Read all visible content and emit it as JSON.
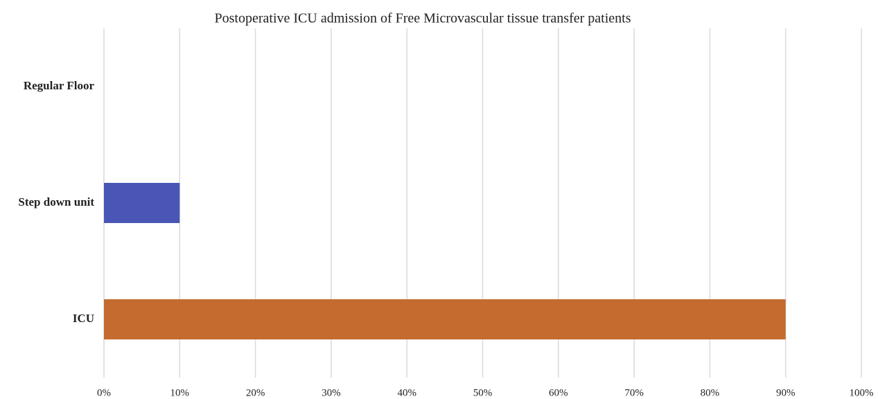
{
  "chart_data": {
    "type": "bar",
    "orientation": "horizontal",
    "title": "Postoperative ICU admission of Free Microvascular tissue transfer patients",
    "categories": [
      "Regular Floor",
      "Step down unit",
      "ICU"
    ],
    "values": [
      0,
      10,
      90
    ],
    "colors": [
      null,
      "#4a56b5",
      "#c46b30"
    ],
    "xlim": [
      0,
      100
    ],
    "xticks": [
      {
        "value": 0,
        "label": "0%"
      },
      {
        "value": 10,
        "label": "10%"
      },
      {
        "value": 20,
        "label": "20%"
      },
      {
        "value": 30,
        "label": "30%"
      },
      {
        "value": 40,
        "label": "40%"
      },
      {
        "value": 50,
        "label": "50%"
      },
      {
        "value": 60,
        "label": "60%"
      },
      {
        "value": 70,
        "label": "70%"
      },
      {
        "value": 80,
        "label": "80%"
      },
      {
        "value": 90,
        "label": "90%"
      },
      {
        "value": 100,
        "label": "100%"
      }
    ],
    "grid": true
  }
}
